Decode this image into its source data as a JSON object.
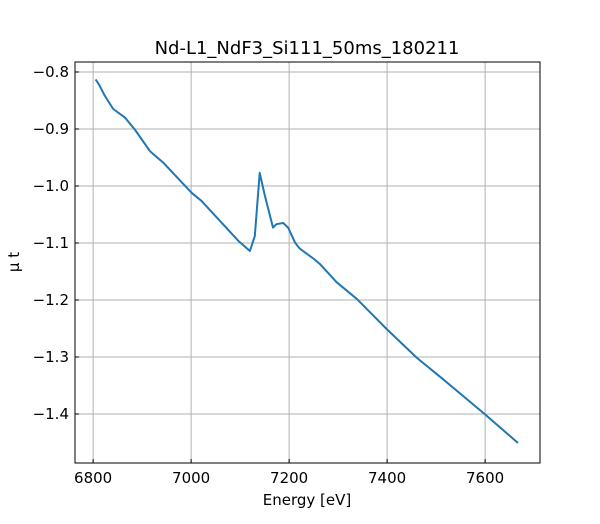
{
  "chart_data": {
    "type": "line",
    "title": "Nd-L1_NdF3_Si111_50ms_180211",
    "xlabel": "Energy [eV]",
    "ylabel": "μ t",
    "xlim": [
      6763,
      7712
    ],
    "ylim": [
      -1.486,
      -0.7825
    ],
    "xticks": [
      6800,
      7000,
      7200,
      7400,
      7600
    ],
    "xtick_labels": [
      "6800",
      "7000",
      "7200",
      "7400",
      "7600"
    ],
    "yticks": [
      -0.8,
      -0.9,
      -1.0,
      -1.1,
      -1.2,
      -1.3,
      -1.4
    ],
    "ytick_labels": [
      "−0.8",
      "−0.9",
      "−1.0",
      "−1.1",
      "−1.2",
      "−1.3",
      "−1.4"
    ],
    "grid": true,
    "series": [
      {
        "name": "mu_t",
        "color": "#1f77b4",
        "x": [
          6805,
          6812,
          6824,
          6841,
          6865,
          6885,
          6916,
          6943,
          7001,
          7021,
          7096,
          7120,
          7130,
          7140,
          7150,
          7167,
          7174,
          7188,
          7198,
          7212,
          7218,
          7222,
          7252,
          7263,
          7297,
          7338,
          7399,
          7460,
          7514,
          7599,
          7667
        ],
        "y": [
          -0.813,
          -0.822,
          -0.842,
          -0.865,
          -0.88,
          -0.901,
          -0.939,
          -0.959,
          -1.012,
          -1.026,
          -1.096,
          -1.114,
          -1.088,
          -0.977,
          -1.015,
          -1.073,
          -1.067,
          -1.065,
          -1.073,
          -1.099,
          -1.106,
          -1.11,
          -1.129,
          -1.137,
          -1.169,
          -1.198,
          -1.251,
          -1.301,
          -1.339,
          -1.4,
          -1.451
        ]
      }
    ]
  }
}
